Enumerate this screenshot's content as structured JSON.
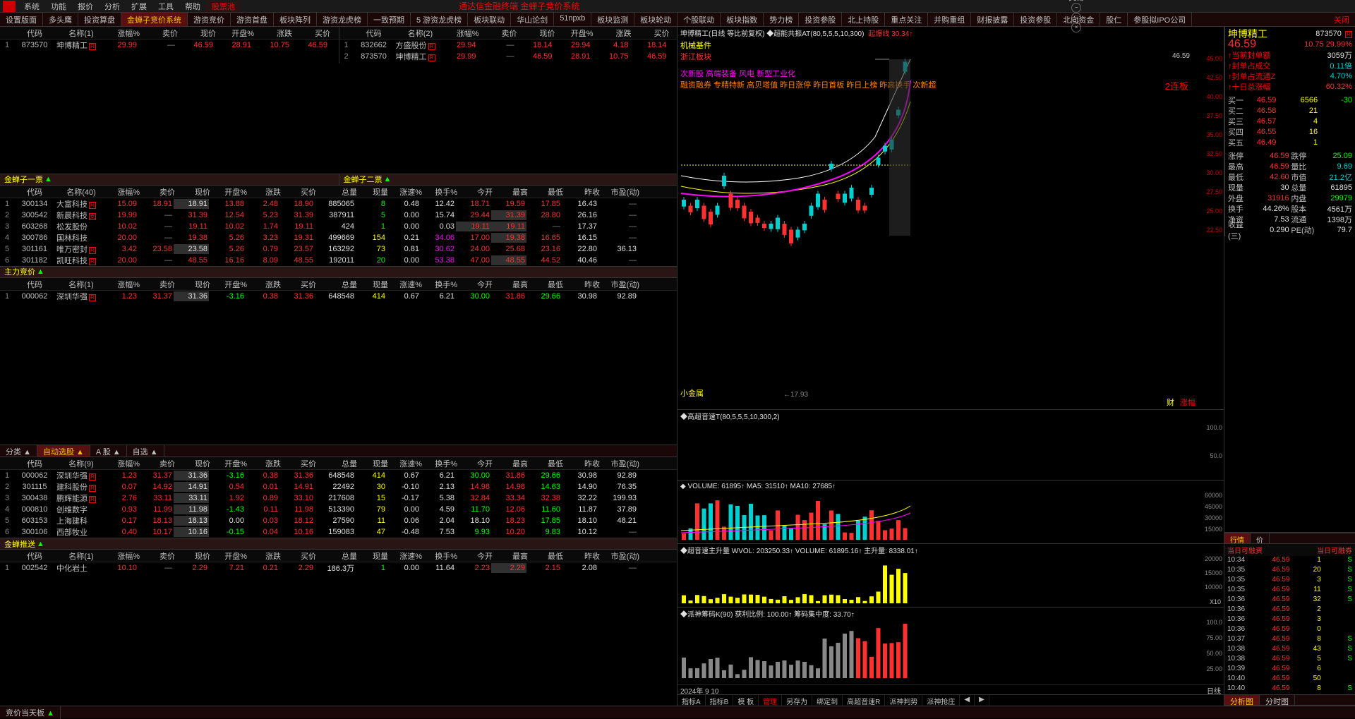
{
  "menubar": {
    "items": [
      "系统",
      "功能",
      "报价",
      "分析",
      "扩展",
      "工具",
      "帮助",
      "股票池"
    ],
    "center_title": "通达信金融终端  金蝉子竞价系统",
    "right": [
      "行情",
      "交易"
    ]
  },
  "tabs": {
    "items": [
      "设置版面",
      "多头鹰",
      "投资算盘",
      "金蝉子竞价系统",
      "游资竞价",
      "游资首盘",
      "板块阵列",
      "游资龙虎榜",
      "一致预期",
      "5 游资龙虎榜",
      "板块联动",
      "华山论剑",
      "51npxb",
      "板块监测",
      "板块轮动",
      "个股联动",
      "板块指数",
      "势力榜",
      "投资参股",
      "北上持股",
      "重点关注",
      "并购重组",
      "财报披露",
      "投资参股",
      "北向资金",
      "股仁",
      "参股拟IPO公司"
    ],
    "active_index": 3,
    "close_label": "关闭"
  },
  "top_tables": {
    "left_headers": [
      "",
      "代码",
      "名称(1)",
      "涨幅%",
      "卖价",
      "现价",
      "开盘%",
      "涨跌",
      "买价"
    ],
    "left_rows": [
      {
        "idx": "1",
        "code": "873570",
        "name": "坤博精工",
        "badge": "R",
        "pct": "29.99",
        "sell": "—",
        "now": "46.59",
        "open": "28.91",
        "chg": "10.75",
        "buy": "46.59",
        "colors": [
          "red",
          "gray",
          "red",
          "red",
          "red",
          "red"
        ]
      }
    ],
    "right_headers": [
      "",
      "代码",
      "名称(2)",
      "涨幅%",
      "卖价",
      "现价",
      "开盘%",
      "涨跌",
      "买价"
    ],
    "right_rows": [
      {
        "idx": "1",
        "code": "832662",
        "name": "方盛股份",
        "badge": "R",
        "pct": "29.94",
        "sell": "—",
        "now": "18.14",
        "open": "29.94",
        "chg": "4.18",
        "buy": "18.14"
      },
      {
        "idx": "2",
        "code": "873570",
        "name": "坤博精工",
        "badge": "R",
        "pct": "29.99",
        "sell": "—",
        "now": "46.59",
        "open": "28.91",
        "chg": "10.75",
        "buy": "46.59"
      }
    ]
  },
  "sections": {
    "jc1_label": "金蝉子一票",
    "jc2_label": "金蝉子二票",
    "main_bid_label": "主力竞价",
    "class_label": "分类",
    "auto_label": "自动选股",
    "a_label": "A 股",
    "custom_label": "自选",
    "push_label": "金蝉推送",
    "bottom_label": "竞价当天板"
  },
  "wide_headers": [
    "",
    "代码",
    "名称(40)",
    "涨幅%",
    "卖价",
    "现价",
    "开盘%",
    "涨跌",
    "买价",
    "总量",
    "现量",
    "涨速%",
    "换手%",
    "今开",
    "最高",
    "最低",
    "昨收",
    "市盈(动)"
  ],
  "wide_headers_1": [
    "",
    "代码",
    "名称(1)",
    "涨幅%",
    "卖价",
    "现价",
    "开盘%",
    "涨跌",
    "买价",
    "总量",
    "现量",
    "涨速%",
    "换手%",
    "今开",
    "最高",
    "最低",
    "昨收",
    "市盈(动)"
  ],
  "wide_headers_9": [
    "",
    "代码",
    "名称(9)",
    "涨幅%",
    "卖价",
    "现价",
    "开盘%",
    "涨跌",
    "买价",
    "总量",
    "现量",
    "涨速%",
    "换手%",
    "今开",
    "最高",
    "最低",
    "昨收",
    "市盈(动)"
  ],
  "jc1_rows": [
    {
      "idx": "1",
      "code": "300134",
      "name": "大富科技",
      "badge": "R",
      "v": [
        "15.09",
        "18.91",
        "18.91",
        "13.88",
        "2.48",
        "18.90",
        "885065",
        "8",
        "0.48",
        "12.42",
        "18.71",
        "19.59",
        "17.85",
        "16.43",
        "—"
      ],
      "cls": [
        "red",
        "red",
        "hl white",
        "red",
        "red",
        "red",
        "white",
        "green",
        "white",
        "white",
        "red",
        "red",
        "red",
        "white",
        "gray"
      ]
    },
    {
      "idx": "2",
      "code": "300542",
      "name": "新晨科技",
      "badge": "支",
      "v": [
        "19.99",
        "—",
        "31.39",
        "12.54",
        "5.23",
        "31.39",
        "387911",
        "5",
        "0.00",
        "15.74",
        "29.44",
        "31.39",
        "28.80",
        "26.16",
        "—"
      ],
      "cls": [
        "red",
        "gray",
        "red",
        "red",
        "red",
        "red",
        "white",
        "green",
        "white",
        "white",
        "red",
        "hl red",
        "red",
        "white",
        "gray"
      ]
    },
    {
      "idx": "3",
      "code": "603268",
      "name": "松发股份",
      "badge": "",
      "v": [
        "10.02",
        "—",
        "19.11",
        "10.02",
        "1.74",
        "19.11",
        "424",
        "1",
        "0.00",
        "0.03",
        "19.11",
        "19.11",
        "—",
        "17.37",
        "—"
      ],
      "cls": [
        "red",
        "gray",
        "red",
        "red",
        "red",
        "red",
        "white",
        "green",
        "white",
        "white",
        "hl red",
        "hl red",
        "gray",
        "white",
        "gray"
      ]
    },
    {
      "idx": "4",
      "code": "300786",
      "name": "国林科技",
      "badge": "",
      "v": [
        "20.00",
        "—",
        "19.38",
        "5.26",
        "3.23",
        "19.31",
        "499669",
        "154",
        "0.21",
        "34.06",
        "17.00",
        "19.38",
        "16.65",
        "16.15",
        "—"
      ],
      "cls": [
        "red",
        "gray",
        "red",
        "red",
        "red",
        "red",
        "white",
        "yellow",
        "white",
        "magenta",
        "red",
        "hl red",
        "red",
        "white",
        "gray"
      ]
    },
    {
      "idx": "5",
      "code": "301161",
      "name": "唯万密封",
      "badge": "R",
      "v": [
        "3.42",
        "23.58",
        "23.58",
        "5.26",
        "0.79",
        "23.57",
        "163292",
        "73",
        "0.81",
        "30.62",
        "24.00",
        "25.68",
        "23.16",
        "22.80",
        "36.13"
      ],
      "cls": [
        "red",
        "red",
        "hl white",
        "red",
        "red",
        "red",
        "white",
        "yellow",
        "white",
        "magenta",
        "red",
        "red",
        "red",
        "white",
        "white"
      ]
    },
    {
      "idx": "6",
      "code": "301182",
      "name": "凯旺科技",
      "badge": "R",
      "v": [
        "20.00",
        "—",
        "48.55",
        "16.16",
        "8.09",
        "48.55",
        "192011",
        "20",
        "0.00",
        "53.38",
        "47.00",
        "48.55",
        "44.52",
        "40.46",
        "—"
      ],
      "cls": [
        "red",
        "gray",
        "red",
        "red",
        "red",
        "red",
        "white",
        "green",
        "white",
        "magenta",
        "red",
        "hl red",
        "red",
        "white",
        "gray"
      ]
    }
  ],
  "main_bid_rows": [
    {
      "idx": "1",
      "code": "000062",
      "name": "深圳华强",
      "badge": "R",
      "v": [
        "1.23",
        "31.37",
        "31.36",
        "-3.16",
        "0.38",
        "31.36",
        "648548",
        "414",
        "0.67",
        "6.21",
        "30.00",
        "31.86",
        "29.66",
        "30.98",
        "92.89"
      ],
      "cls": [
        "red",
        "red",
        "hl white",
        "green",
        "red",
        "red",
        "white",
        "yellow",
        "white",
        "white",
        "green",
        "red",
        "green",
        "white",
        "white"
      ]
    }
  ],
  "auto_rows": [
    {
      "idx": "1",
      "code": "000062",
      "name": "深圳华强",
      "badge": "R",
      "v": [
        "1.23",
        "31.37",
        "31.36",
        "-3.16",
        "0.38",
        "31.36",
        "648548",
        "414",
        "0.67",
        "6.21",
        "30.00",
        "31.86",
        "29.66",
        "30.98",
        "92.89"
      ],
      "cls": [
        "red",
        "red",
        "hl white",
        "green",
        "red",
        "red",
        "white",
        "yellow",
        "white",
        "white",
        "green",
        "red",
        "green",
        "white",
        "white"
      ]
    },
    {
      "idx": "2",
      "code": "301115",
      "name": "建科股份",
      "badge": "R",
      "v": [
        "0.07",
        "14.92",
        "14.91",
        "0.54",
        "0.01",
        "14.91",
        "22492",
        "30",
        "-0.10",
        "2.13",
        "14.98",
        "14.98",
        "14.63",
        "14.90",
        "76.35"
      ],
      "cls": [
        "red",
        "red",
        "hl white",
        "red",
        "red",
        "red",
        "white",
        "yellow",
        "white",
        "white",
        "red",
        "red",
        "green",
        "white",
        "white"
      ]
    },
    {
      "idx": "3",
      "code": "300438",
      "name": "鹏辉能源",
      "badge": "R",
      "v": [
        "2.76",
        "33.11",
        "33.11",
        "1.92",
        "0.89",
        "33.10",
        "217608",
        "15",
        "-0.17",
        "5.38",
        "32.84",
        "33.34",
        "32.38",
        "32.22",
        "199.93"
      ],
      "cls": [
        "red",
        "red",
        "hl white",
        "red",
        "red",
        "red",
        "white",
        "yellow",
        "white",
        "white",
        "red",
        "red",
        "red",
        "white",
        "white"
      ]
    },
    {
      "idx": "4",
      "code": "000810",
      "name": "创维数字",
      "badge": "",
      "v": [
        "0.93",
        "11.99",
        "11.98",
        "-1.43",
        "0.11",
        "11.98",
        "513390",
        "79",
        "0.00",
        "4.59",
        "11.70",
        "12.06",
        "11.60",
        "11.87",
        "37.89"
      ],
      "cls": [
        "red",
        "red",
        "hl white",
        "green",
        "red",
        "red",
        "white",
        "yellow",
        "white",
        "white",
        "green",
        "red",
        "green",
        "white",
        "white"
      ]
    },
    {
      "idx": "5",
      "code": "603153",
      "name": "上海建科",
      "badge": "",
      "v": [
        "0.17",
        "18.13",
        "18.13",
        "0.00",
        "0.03",
        "18.12",
        "27590",
        "11",
        "0.06",
        "2.04",
        "18.10",
        "18.23",
        "17.85",
        "18.10",
        "48.21"
      ],
      "cls": [
        "red",
        "red",
        "hl white",
        "white",
        "red",
        "red",
        "white",
        "yellow",
        "white",
        "white",
        "white",
        "red",
        "green",
        "white",
        "white"
      ]
    },
    {
      "idx": "6",
      "code": "300106",
      "name": "西部牧业",
      "badge": "",
      "v": [
        "0.40",
        "10.17",
        "10.16",
        "-0.15",
        "0.04",
        "10.16",
        "159083",
        "47",
        "-0.48",
        "7.53",
        "9.93",
        "10.20",
        "9.83",
        "10.12",
        "—"
      ],
      "cls": [
        "red",
        "red",
        "hl white",
        "green",
        "red",
        "red",
        "white",
        "yellow",
        "white",
        "white",
        "green",
        "red",
        "green",
        "white",
        "gray"
      ]
    }
  ],
  "push_rows": [
    {
      "idx": "1",
      "code": "002542",
      "name": "中化岩土",
      "badge": "",
      "v": [
        "10.10",
        "—",
        "2.29",
        "7.21",
        "0.21",
        "2.29",
        "186.3万",
        "1",
        "0.00",
        "11.64",
        "2.23",
        "2.29",
        "2.15",
        "2.08",
        "—"
      ],
      "cls": [
        "red",
        "gray",
        "red",
        "red",
        "red",
        "red",
        "white",
        "green",
        "white",
        "white",
        "red",
        "hl red",
        "red",
        "white",
        "gray"
      ]
    }
  ],
  "stock_detail": {
    "name": "坤博精工",
    "code": "873570",
    "badge": "R",
    "chart_title": "坤博精工(日线 等比前复权)  ◆超能共振AT(80,5,5,5,10,300)",
    "chart_badge": "起爆线 30.34↑",
    "tag1": "机械基件",
    "tag2": "浙江板块",
    "tags_line1": "次新股 高端装备 风电 新型工业化",
    "tags_line2": "融资融券 专精特新 高贝塔值 昨日涨停 昨日首板 昨日上榜 昨高换手 次新超",
    "lianban": "2连板",
    "price": "46.59",
    "chg": "10.75",
    "pct": "29.99%",
    "info_rows": [
      {
        "l": "当前封单额",
        "r": "3059万",
        "rc": "white"
      },
      {
        "l": "封单占成交",
        "r": "0.11倍",
        "rc": "cyan"
      },
      {
        "l": "封单占流通Z",
        "r": "4.70%",
        "rc": "cyan"
      },
      {
        "l": "十日总涨幅",
        "r": "60.32%",
        "rc": "red"
      }
    ],
    "bids": [
      {
        "l": "买一",
        "p": "46.59",
        "v": "6566",
        "d": "-30"
      },
      {
        "l": "买二",
        "p": "46.58",
        "v": "21",
        "d": ""
      },
      {
        "l": "买三",
        "p": "46.57",
        "v": "4",
        "d": ""
      },
      {
        "l": "买四",
        "p": "46.55",
        "v": "16",
        "d": ""
      },
      {
        "l": "买五",
        "p": "46.49",
        "v": "1",
        "d": ""
      }
    ],
    "stats": [
      {
        "l": "涨停",
        "v1": "46.59",
        "c1": "red",
        "l2": "跌停",
        "v2": "25.09",
        "c2": "green"
      },
      {
        "l": "最高",
        "v1": "46.59",
        "c1": "red",
        "l2": "量比",
        "v2": "9.69",
        "c2": "cyan"
      },
      {
        "l": "最低",
        "v1": "42.60",
        "c1": "red",
        "l2": "市值",
        "v2": "21.2亿",
        "c2": "cyan"
      },
      {
        "l": "现量",
        "v1": "30",
        "c1": "white",
        "l2": "总量",
        "v2": "61895",
        "c2": "white"
      },
      {
        "l": "外盘",
        "v1": "31916",
        "c1": "red",
        "l2": "内盘",
        "v2": "29979",
        "c2": "green"
      },
      {
        "l": "换手",
        "v1": "44.26%",
        "c1": "white",
        "l2": "股本",
        "v2": "4561万",
        "c2": "white"
      },
      {
        "l": "净资",
        "v1": "7.53",
        "c1": "white",
        "l2": "流通",
        "v2": "1398万",
        "c2": "white"
      },
      {
        "l": "收益(三)",
        "v1": "0.290",
        "c1": "white",
        "l2": "PE(动)",
        "v2": "79.7",
        "c2": "white"
      }
    ],
    "yaxis": [
      "45.00",
      "42.50",
      "40.00",
      "37.50",
      "35.00",
      "32.50",
      "30.00",
      "27.50",
      "25.00",
      "22.50"
    ],
    "price_labels": {
      "high": "46.59",
      "side": "35.84 -",
      "range": "29.00 - 29",
      "low_range": "23.71 - 24.50",
      "low": "17.93",
      "tag_low": "小金属",
      "tag_right": "财",
      "tag_end": "涨幅"
    },
    "ind2": "◆高超音速T(80,5,5,5,10,300,2)",
    "ind2_y": [
      "100.0",
      "50.0"
    ],
    "vol_line": "◆ VOLUME: 61895↑  MA5: 31510↑  MA10: 27685↑",
    "vol_y": [
      "60000",
      "45000",
      "30000",
      "15000"
    ],
    "ind3": "◆超音速主升量 WVOL: 203250.33↑  VOLUME: 61895.16↑  主升量: 8338.01↑",
    "ind3_y": [
      "20000",
      "15000",
      "10000"
    ],
    "ind3_tag": "X10",
    "ind4": "◆派神筹码K(90) 获利比例: 100.00↑  筹码集中度: 33.70↑",
    "ind4_y": [
      "100.0",
      "75.00",
      "50.00",
      "25.00"
    ],
    "xaxis": "2024年          9                    10",
    "xright": "日线",
    "chart_tabs": [
      "指标A",
      "指标B",
      "模 板",
      "管理",
      "另存为",
      "绑定到",
      "高超音速R",
      "派神判势",
      "派神抢庄",
      "◀",
      "▶"
    ],
    "bottom_tabs": [
      "分析图",
      "分时图"
    ]
  },
  "tick": {
    "tab1": "行情",
    "tab2": "价",
    "hdr": [
      "当日可融资",
      "当日可融券"
    ],
    "rows": [
      {
        "t": "10:34",
        "p": "46.59",
        "v": "1",
        "s": "S"
      },
      {
        "t": "10:35",
        "p": "46.59",
        "v": "20",
        "s": "S"
      },
      {
        "t": "10:35",
        "p": "46.59",
        "v": "3",
        "s": "S"
      },
      {
        "t": "10:35",
        "p": "46.59",
        "v": "11",
        "s": "S"
      },
      {
        "t": "10:36",
        "p": "46.59",
        "v": "32",
        "s": "S"
      },
      {
        "t": "10:36",
        "p": "46.59",
        "v": "2",
        "s": ""
      },
      {
        "t": "10:36",
        "p": "46.59",
        "v": "3",
        "s": ""
      },
      {
        "t": "10:36",
        "p": "46.59",
        "v": "0",
        "s": ""
      },
      {
        "t": "10:37",
        "p": "46.59",
        "v": "8",
        "s": "S"
      },
      {
        "t": "10:38",
        "p": "46.59",
        "v": "43",
        "s": "S"
      },
      {
        "t": "10:38",
        "p": "46.59",
        "v": "5",
        "s": "S"
      },
      {
        "t": "10:39",
        "p": "46.59",
        "v": "6",
        "s": ""
      },
      {
        "t": "10:40",
        "p": "46.59",
        "v": "50",
        "s": ""
      },
      {
        "t": "10:40",
        "p": "46.59",
        "v": "8",
        "s": "S"
      }
    ]
  },
  "colors": {
    "bg": "#000000",
    "red": "#ff3030",
    "green": "#00ff00",
    "yellow": "#ffff00",
    "cyan": "#00d0d0",
    "magenta": "#ff00ff",
    "gray": "#888888",
    "border": "#333333",
    "active_tab": "#5a1010"
  },
  "chart_style": {
    "candle": {
      "up_color": "#00d0d0",
      "down_color": "#ff3030",
      "ma_colors": [
        "#ffffff",
        "#ffff00",
        "#ff00ff",
        "#00ff00"
      ],
      "bg": "#000000",
      "grid": "#1a1a1a"
    },
    "volume": {
      "up": "#ff3030",
      "down": "#00d0d0"
    }
  }
}
